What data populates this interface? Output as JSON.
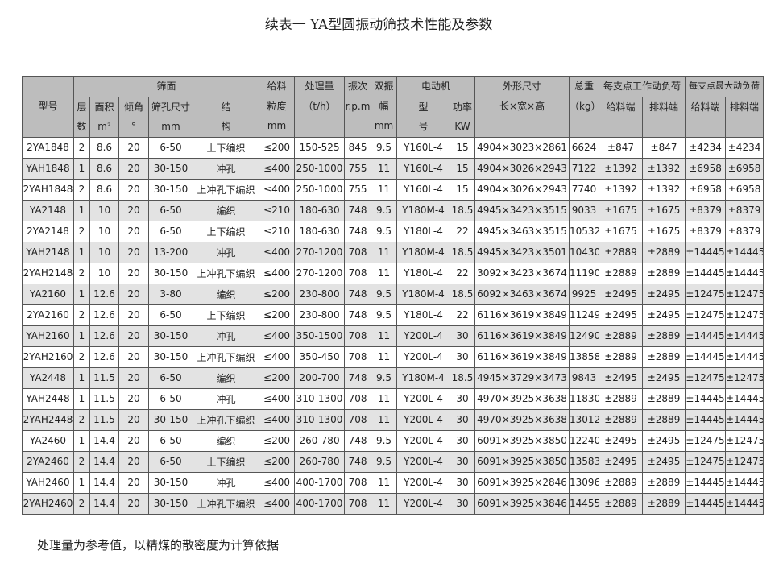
{
  "title": "续表一  YA型圆振动筛技术性能及参数",
  "note": "处理量为参考值，以精煤的散密度为计算依据",
  "table": {
    "header": [
      [
        "型号"
      ],
      [
        "筛面"
      ],
      [
        "给料",
        "粒度",
        "mm"
      ],
      [
        "处理量",
        "（t/h）"
      ],
      [
        "振次",
        "r.p.m"
      ],
      [
        "双振",
        "幅",
        "mm"
      ],
      [
        "电动机"
      ],
      [
        "外形尺寸",
        "长×宽×高"
      ],
      [
        "总重",
        "（kg）"
      ],
      [
        "每支点工作动负荷"
      ],
      [
        "每支点最大动负荷"
      ]
    ],
    "subheader": [
      [
        "层",
        "数"
      ],
      [
        "面积",
        "m²"
      ],
      [
        "倾角",
        "°"
      ],
      [
        "筛孔尺寸",
        "mm"
      ],
      [
        "结",
        "构"
      ],
      [
        "型",
        "号"
      ],
      [
        "功率",
        "KW"
      ],
      [
        "给料端"
      ],
      [
        "排料端"
      ],
      [
        "给料端"
      ],
      [
        "排料端"
      ]
    ],
    "rows": [
      [
        "2YA1848",
        "2",
        "8.6",
        "20",
        "6-50",
        "上下编织",
        "≤200",
        "150-525",
        "845",
        "9.5",
        "Y160L-4",
        "15",
        "4904×3023×2861",
        "6624",
        "±847",
        "±847",
        "±4234",
        "±4234"
      ],
      [
        "YAH1848",
        "1",
        "8.6",
        "20",
        "30-150",
        "冲孔",
        "≤400",
        "250-1000",
        "755",
        "11",
        "Y160L-4",
        "15",
        "4904×3026×2943",
        "7122",
        "±1392",
        "±1392",
        "±6958",
        "±6958"
      ],
      [
        "2YAH1848",
        "2",
        "8.6",
        "20",
        "30-150",
        "上冲孔下编织",
        "≤400",
        "250-1000",
        "755",
        "11",
        "Y160L-4",
        "15",
        "4904×3026×2943",
        "7740",
        "±1392",
        "±1392",
        "±6958",
        "±6958"
      ],
      [
        "YA2148",
        "1",
        "10",
        "20",
        "6-50",
        "编织",
        "≤210",
        "180-630",
        "748",
        "9.5",
        "Y180M-4",
        "18.5",
        "4945×3423×3515",
        "9033",
        "±1675",
        "±1675",
        "±8379",
        "±8379"
      ],
      [
        "2YA2148",
        "2",
        "10",
        "20",
        "6-50",
        "上下编织",
        "≤210",
        "180-630",
        "748",
        "9.5",
        "Y180L-4",
        "22",
        "4945×3463×3515",
        "10532",
        "±1675",
        "±1675",
        "±8379",
        "±8379"
      ],
      [
        "YAH2148",
        "1",
        "10",
        "20",
        "13-200",
        "冲孔",
        "≤400",
        "270-1200",
        "708",
        "11",
        "Y180M-4",
        "18.5",
        "4945×3423×3501",
        "10430",
        "±2889",
        "±2889",
        "±14445",
        "±14445"
      ],
      [
        "2YAH2148",
        "2",
        "10",
        "20",
        "30-150",
        "上冲孔下编织",
        "≤400",
        "270-1200",
        "708",
        "11",
        "Y180L-4",
        "22",
        "3092×3423×3674",
        "11190",
        "±2889",
        "±2889",
        "±14445",
        "±14445"
      ],
      [
        "YA2160",
        "1",
        "12.6",
        "20",
        "3-80",
        "编织",
        "≤200",
        "230-800",
        "748",
        "9.5",
        "Y180M-4",
        "18.5",
        "6092×3463×3674",
        "9925",
        "±2495",
        "±2495",
        "±12475",
        "±12475"
      ],
      [
        "2YA2160",
        "2",
        "12.6",
        "20",
        "6-50",
        "上下编织",
        "≤200",
        "230-800",
        "748",
        "9.5",
        "Y180L-4",
        "22",
        "6116×3619×3849",
        "11249",
        "±2495",
        "±2495",
        "±12475",
        "±12475"
      ],
      [
        "YAH2160",
        "1",
        "12.6",
        "20",
        "30-150",
        "冲孔",
        "≤400",
        "350-1500",
        "708",
        "11",
        "Y200L-4",
        "30",
        "6116×3619×3849",
        "12490",
        "±2889",
        "±2889",
        "±14445",
        "±14445"
      ],
      [
        "2YAH2160",
        "2",
        "12.6",
        "20",
        "30-150",
        "上冲孔下编织",
        "≤400",
        "350-450",
        "708",
        "11",
        "Y200L-4",
        "30",
        "6116×3619×3849",
        "13858",
        "±2889",
        "±2889",
        "±14445",
        "±14445"
      ],
      [
        "YA2448",
        "1",
        "11.5",
        "20",
        "6-50",
        "编织",
        "≤200",
        "200-700",
        "748",
        "9.5",
        "Y180M-4",
        "18.5",
        "4945×3729×3473",
        "9843",
        "±2495",
        "±2495",
        "±12475",
        "±12475"
      ],
      [
        "YAH2448",
        "1",
        "11.5",
        "20",
        "6-50",
        "冲孔",
        "≤400",
        "310-1300",
        "708",
        "11",
        "Y200L-4",
        "30",
        "4970×3925×3638",
        "11830",
        "±2889",
        "±2889",
        "±14445",
        "±14445"
      ],
      [
        "2YAH2448",
        "2",
        "11.5",
        "20",
        "30-150",
        "上冲孔下编织",
        "≤400",
        "310-1300",
        "708",
        "11",
        "Y200L-4",
        "30",
        "4970×3925×3638",
        "13012",
        "±2889",
        "±2889",
        "±14445",
        "±14445"
      ],
      [
        "YA2460",
        "1",
        "14.4",
        "20",
        "6-50",
        "编织",
        "≤200",
        "260-780",
        "748",
        "9.5",
        "Y200L-4",
        "30",
        "6091×3925×3850",
        "12240",
        "±2495",
        "±2495",
        "±12475",
        "±12475"
      ],
      [
        "2YA2460",
        "2",
        "14.4",
        "20",
        "6-50",
        "上下编织",
        "≤200",
        "260-780",
        "748",
        "9.5",
        "Y200L-4",
        "30",
        "6091×3925×3850",
        "13583",
        "±2495",
        "±2495",
        "±12475",
        "±12475"
      ],
      [
        "YAH2460",
        "1",
        "14.4",
        "20",
        "30-150",
        "冲孔",
        "≤400",
        "400-1700",
        "708",
        "11",
        "Y200L-4",
        "30",
        "6091×3925×2846",
        "13096",
        "±2889",
        "±2889",
        "±14445",
        "±14445"
      ],
      [
        "2YAH2460",
        "2",
        "14.4",
        "20",
        "30-150",
        "上冲孔下编织",
        "≤400",
        "400-1700",
        "708",
        "11",
        "Y200L-4",
        "30",
        "6091×3925×3846",
        "14455",
        "±2889",
        "±2889",
        "±14445",
        "±14445"
      ]
    ]
  }
}
